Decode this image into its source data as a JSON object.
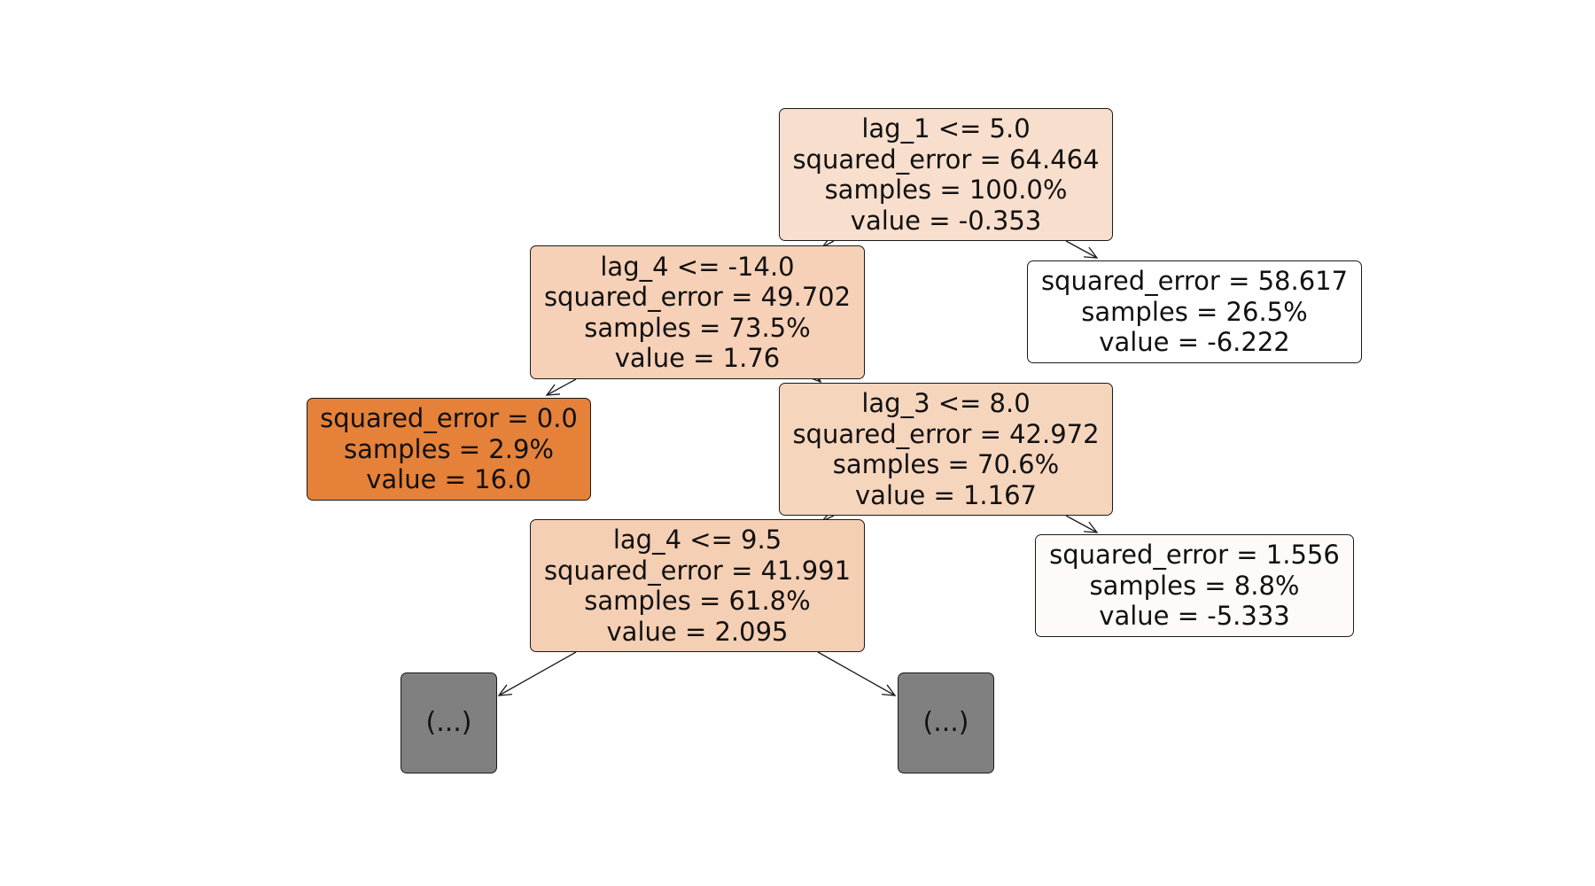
{
  "diagram": {
    "type": "decision-tree",
    "nodes": [
      {
        "id": "n0",
        "lines": [
          "lag_1 <= 5.0",
          "squared_error = 64.464",
          "samples = 100.0%",
          "value = -0.353"
        ],
        "fill": "#f8decc"
      },
      {
        "id": "n1",
        "lines": [
          "lag_4 <= -14.0",
          "squared_error = 49.702",
          "samples = 73.5%",
          "value = 1.76"
        ],
        "fill": "#f6d1b7"
      },
      {
        "id": "n2",
        "lines": [
          "squared_error = 58.617",
          "samples = 26.5%",
          "value = -6.222"
        ],
        "fill": "#ffffff"
      },
      {
        "id": "n3",
        "lines": [
          "squared_error = 0.0",
          "samples = 2.9%",
          "value = 16.0"
        ],
        "fill": "#e58139"
      },
      {
        "id": "n4",
        "lines": [
          "lag_3 <= 8.0",
          "squared_error = 42.972",
          "samples = 70.6%",
          "value = 1.167"
        ],
        "fill": "#f6d5bd"
      },
      {
        "id": "n5",
        "lines": [
          "lag_4 <= 9.5",
          "squared_error = 41.991",
          "samples = 61.8%",
          "value = 2.095"
        ],
        "fill": "#f5cfb3"
      },
      {
        "id": "n6",
        "lines": [
          "squared_error = 1.556",
          "samples = 8.8%",
          "value = -5.333"
        ],
        "fill": "#fefaf7"
      },
      {
        "id": "n7",
        "lines": [
          "(...)"
        ],
        "fill": "#808080"
      },
      {
        "id": "n8",
        "lines": [
          "(...)"
        ],
        "fill": "#808080"
      }
    ],
    "edges": [
      {
        "from": "n0",
        "to": "n1"
      },
      {
        "from": "n0",
        "to": "n2"
      },
      {
        "from": "n1",
        "to": "n3"
      },
      {
        "from": "n1",
        "to": "n4"
      },
      {
        "from": "n4",
        "to": "n5"
      },
      {
        "from": "n4",
        "to": "n6"
      },
      {
        "from": "n5",
        "to": "n7"
      },
      {
        "from": "n5",
        "to": "n8"
      }
    ]
  }
}
